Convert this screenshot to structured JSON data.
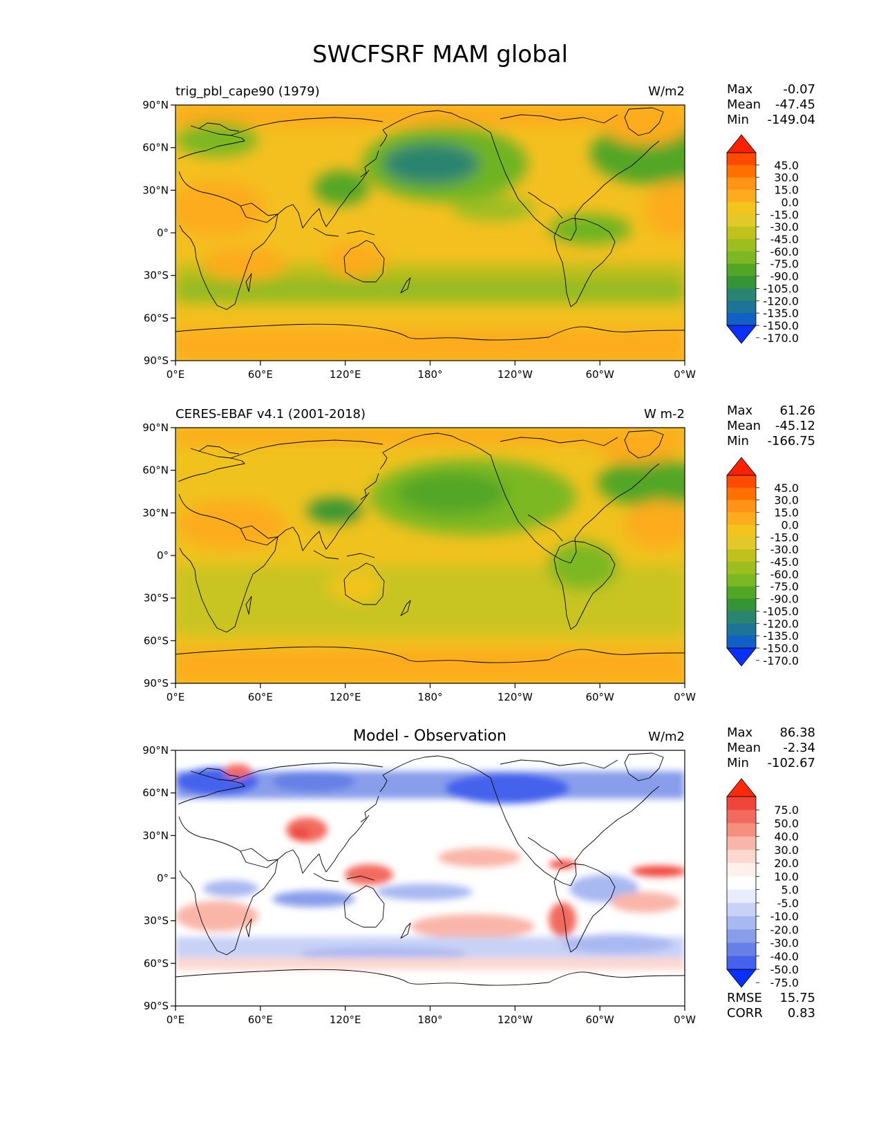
{
  "figure": {
    "title": "SWCFSRF MAM global"
  },
  "axes": {
    "lat_ticks": [
      "90°N",
      "60°N",
      "30°N",
      "0°",
      "30°S",
      "60°S",
      "90°S"
    ],
    "lon_ticks": [
      "0°E",
      "60°E",
      "120°E",
      "180°",
      "120°W",
      "60°W",
      "0°W"
    ]
  },
  "panels": [
    {
      "name": "test",
      "left_title": "trig_pbl_cape90 (1979)",
      "center_title": "",
      "units": "W/m2",
      "stats": [
        {
          "label": "Max",
          "value": "-0.07"
        },
        {
          "label": "Mean",
          "value": "-47.45"
        },
        {
          "label": "Min",
          "value": "-149.04"
        }
      ],
      "colorbar": {
        "labels": [
          "45.0",
          "30.0",
          "15.0",
          "0.0",
          "-15.0",
          "-30.0",
          "-45.0",
          "-60.0",
          "-75.0",
          "-90.0",
          "-105.0",
          "-120.0",
          "-135.0",
          "-150.0",
          "-170.0"
        ],
        "colors": [
          "#ff2000",
          "#ff4a00",
          "#ff7000",
          "#ff9418",
          "#fcac1c",
          "#f2c41c",
          "#e2c828",
          "#c0c21c",
          "#9ebe20",
          "#7cb824",
          "#52a626",
          "#349436",
          "#2a8470",
          "#1e7496",
          "#1160c8",
          "#0a30ff"
        ]
      }
    },
    {
      "name": "reference",
      "left_title": "CERES-EBAF v4.1 (2001-2018)",
      "center_title": "",
      "units": "W m-2",
      "stats": [
        {
          "label": "Max",
          "value": "61.26"
        },
        {
          "label": "Mean",
          "value": "-45.12"
        },
        {
          "label": "Min",
          "value": "-166.75"
        }
      ],
      "colorbar": {
        "labels": [
          "45.0",
          "30.0",
          "15.0",
          "0.0",
          "-15.0",
          "-30.0",
          "-45.0",
          "-60.0",
          "-75.0",
          "-90.0",
          "-105.0",
          "-120.0",
          "-135.0",
          "-150.0",
          "-170.0"
        ],
        "colors": [
          "#ff2000",
          "#ff4a00",
          "#ff7000",
          "#ff9418",
          "#fcac1c",
          "#f2c41c",
          "#e2c828",
          "#c0c21c",
          "#9ebe20",
          "#7cb824",
          "#52a626",
          "#349436",
          "#2a8470",
          "#1e7496",
          "#1160c8",
          "#0a30ff"
        ]
      }
    },
    {
      "name": "difference",
      "left_title": "",
      "center_title": "Model - Observation",
      "units": "W/m2",
      "stats": [
        {
          "label": "Max",
          "value": "86.38"
        },
        {
          "label": "Mean",
          "value": "-2.34"
        },
        {
          "label": "Min",
          "value": "-102.67"
        }
      ],
      "extra_stats": [
        {
          "label": "RMSE",
          "value": "15.75"
        },
        {
          "label": "CORR",
          "value": "0.83"
        }
      ],
      "colorbar": {
        "labels": [
          "75.0",
          "50.0",
          "40.0",
          "30.0",
          "20.0",
          "10.0",
          "5.0",
          "-5.0",
          "-10.0",
          "-20.0",
          "-30.0",
          "-40.0",
          "-50.0",
          "-75.0"
        ],
        "colors": [
          "#ff2a0a",
          "#f0453a",
          "#f26a5e",
          "#f5907f",
          "#f9b5a8",
          "#fcd8d0",
          "#fff0ec",
          "#ffffff",
          "#e8ecfb",
          "#c8d2f7",
          "#a8b8f1",
          "#889eeb",
          "#6680e6",
          "#4462ec",
          "#0a30ff"
        ]
      }
    }
  ]
}
